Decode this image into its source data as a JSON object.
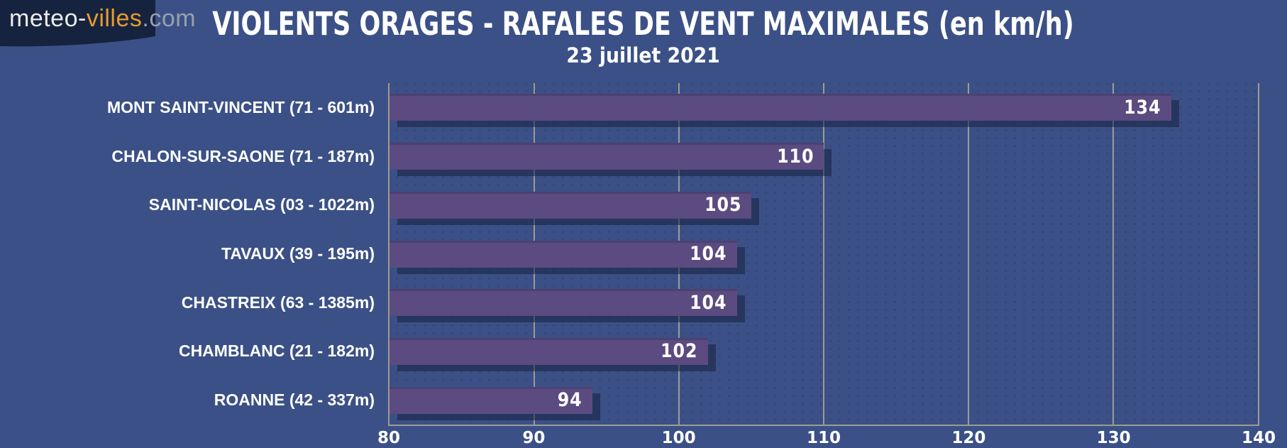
{
  "logo": {
    "part_meteo": "meteo-",
    "part_villes": "villes",
    "part_com": ".com"
  },
  "header": {
    "title": "VIOLENTS ORAGES - RAFALES DE VENT MAXIMALES (en km/h)",
    "subtitle": "23 juillet 2021"
  },
  "chart_data": {
    "type": "bar",
    "orientation": "horizontal",
    "title": "VIOLENTS ORAGES - RAFALES DE VENT MAXIMALES (en km/h)",
    "subtitle": "23 juillet 2021",
    "unit": "km/h",
    "categories": [
      "MONT SAINT-VINCENT (71 - 601m)",
      "CHALON-SUR-SAONE (71 - 187m)",
      "SAINT-NICOLAS (03 - 1022m)",
      "TAVAUX (39 - 195m)",
      "CHASTREIX (63 - 1385m)",
      "CHAMBLANC (21 - 182m)",
      "ROANNE (42 - 337m)"
    ],
    "values": [
      134,
      110,
      105,
      104,
      104,
      102,
      94
    ],
    "xlim": [
      80,
      140
    ],
    "xticks": [
      80,
      90,
      100,
      110,
      120,
      130,
      140
    ],
    "grid": true,
    "legend": false,
    "colors": {
      "background": "#3B5086",
      "bar": "#5B4B80",
      "bar_shadow": "#172142",
      "grid": "#9D9C92",
      "text": "#FFFFFF",
      "logo_background": "#16233E",
      "logo_accent": "#E89B2D",
      "logo_gray": "#97A0AD"
    }
  }
}
